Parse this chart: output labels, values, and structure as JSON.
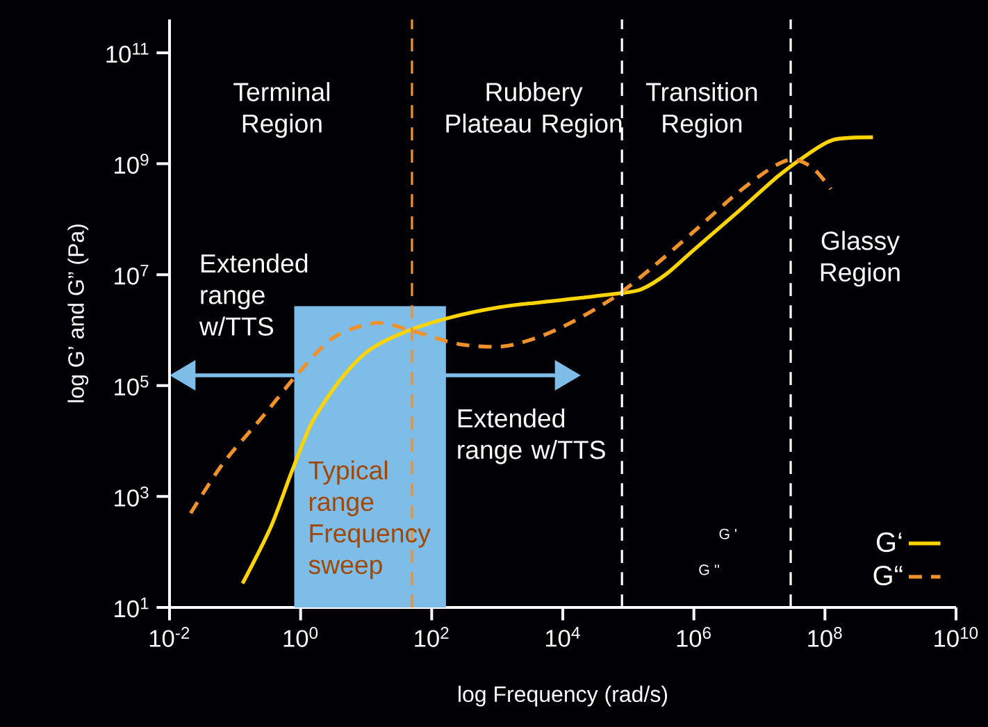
{
  "chart_data": {
    "type": "line",
    "log": "xy",
    "legend": "bottom right",
    "xlabel": "log Frequency (rad/s)",
    "ylabel": "log G’ and G” (Pa)",
    "xlim": [
      0.01,
      10000000000
    ],
    "ylim": [
      10,
      400000000000
    ],
    "xticks": [
      {
        "value": 0.01,
        "label": "10$^{-2}$"
      },
      {
        "value": 1,
        "label": "10$^{0}$"
      },
      {
        "value": 100,
        "label": "10$^{2}$"
      },
      {
        "value": 10000,
        "label": "10$^{4}$"
      },
      {
        "value": 1000000,
        "label": "10$^{6}$"
      },
      {
        "value": 100000000,
        "label": "10$^{8}$"
      },
      {
        "value": 10000000000,
        "label": "10$^{10}$"
      }
    ],
    "yticks": [
      {
        "value": 10,
        "label": "10$^{1}$"
      },
      {
        "value": 1000,
        "label": "10$^{3}$"
      },
      {
        "value": 100000,
        "label": "10$^{5}$"
      },
      {
        "value": 10000000,
        "label": "10$^{7}$"
      },
      {
        "value": 1000000000,
        "label": "10$^{9}$"
      },
      {
        "value": 100000000000,
        "label": "10$^{11}$"
      }
    ],
    "series": [
      {
        "type": "area",
        "color": "#7dbde8",
        "x": [
          0.8,
          165
        ],
        "values": [
          2700000,
          2700000
        ]
      },
      {
        "name": "G‘",
        "color": "#ffd400",
        "line_style": "solid",
        "x": [
          0.13,
          0.35,
          0.74,
          1.5,
          4.1,
          10.7,
          36,
          160,
          1100,
          7800,
          71000,
          160000,
          390000,
          1000000,
          4500000,
          19000000,
          51000000,
          135000000,
          540000000
        ],
        "values": [
          27,
          280,
          2900,
          22000,
          130000,
          420000,
          890000,
          1600000,
          2600000,
          3400000,
          4600000,
          5500000,
          10500000,
          28000000,
          130000000,
          590000000,
          1400000000,
          2700000000,
          3000000000
        ]
      },
      {
        "name": "G“",
        "color": "#f0922b",
        "line_style": "dashed",
        "x": [
          0.021,
          0.065,
          0.28,
          0.93,
          3.2,
          13.8,
          47,
          260,
          1400,
          7800,
          55000,
          240000,
          1000000,
          4500000,
          15000000,
          32000000,
          66000000,
          123000000
        ],
        "values": [
          500,
          3900,
          30000,
          170000,
          740000,
          1350000,
          1000000,
          560000,
          520000,
          1000000,
          3600000,
          14000000,
          60000000,
          290000000,
          830000000,
          1200000000,
          830000000,
          350000000
        ]
      }
    ],
    "ref_lines": [
      {
        "axis": "x",
        "value": 50,
        "color": "#f0922b",
        "line_style": "dashed"
      },
      {
        "axis": "x",
        "value": 80000,
        "color": "#ffffff",
        "line_style": "dashed"
      },
      {
        "axis": "x",
        "value": 30000000,
        "color": "#ffffff",
        "line_style": "dashed"
      }
    ],
    "annotations": [
      "Terminal Region",
      "Rubbery Plateau Region",
      "Transition Region",
      "Glassy Region",
      "Extended range w/TTS",
      "Extended range w/TTS",
      "Typical range Frequency sweep",
      "G '",
      "G ''"
    ]
  }
}
